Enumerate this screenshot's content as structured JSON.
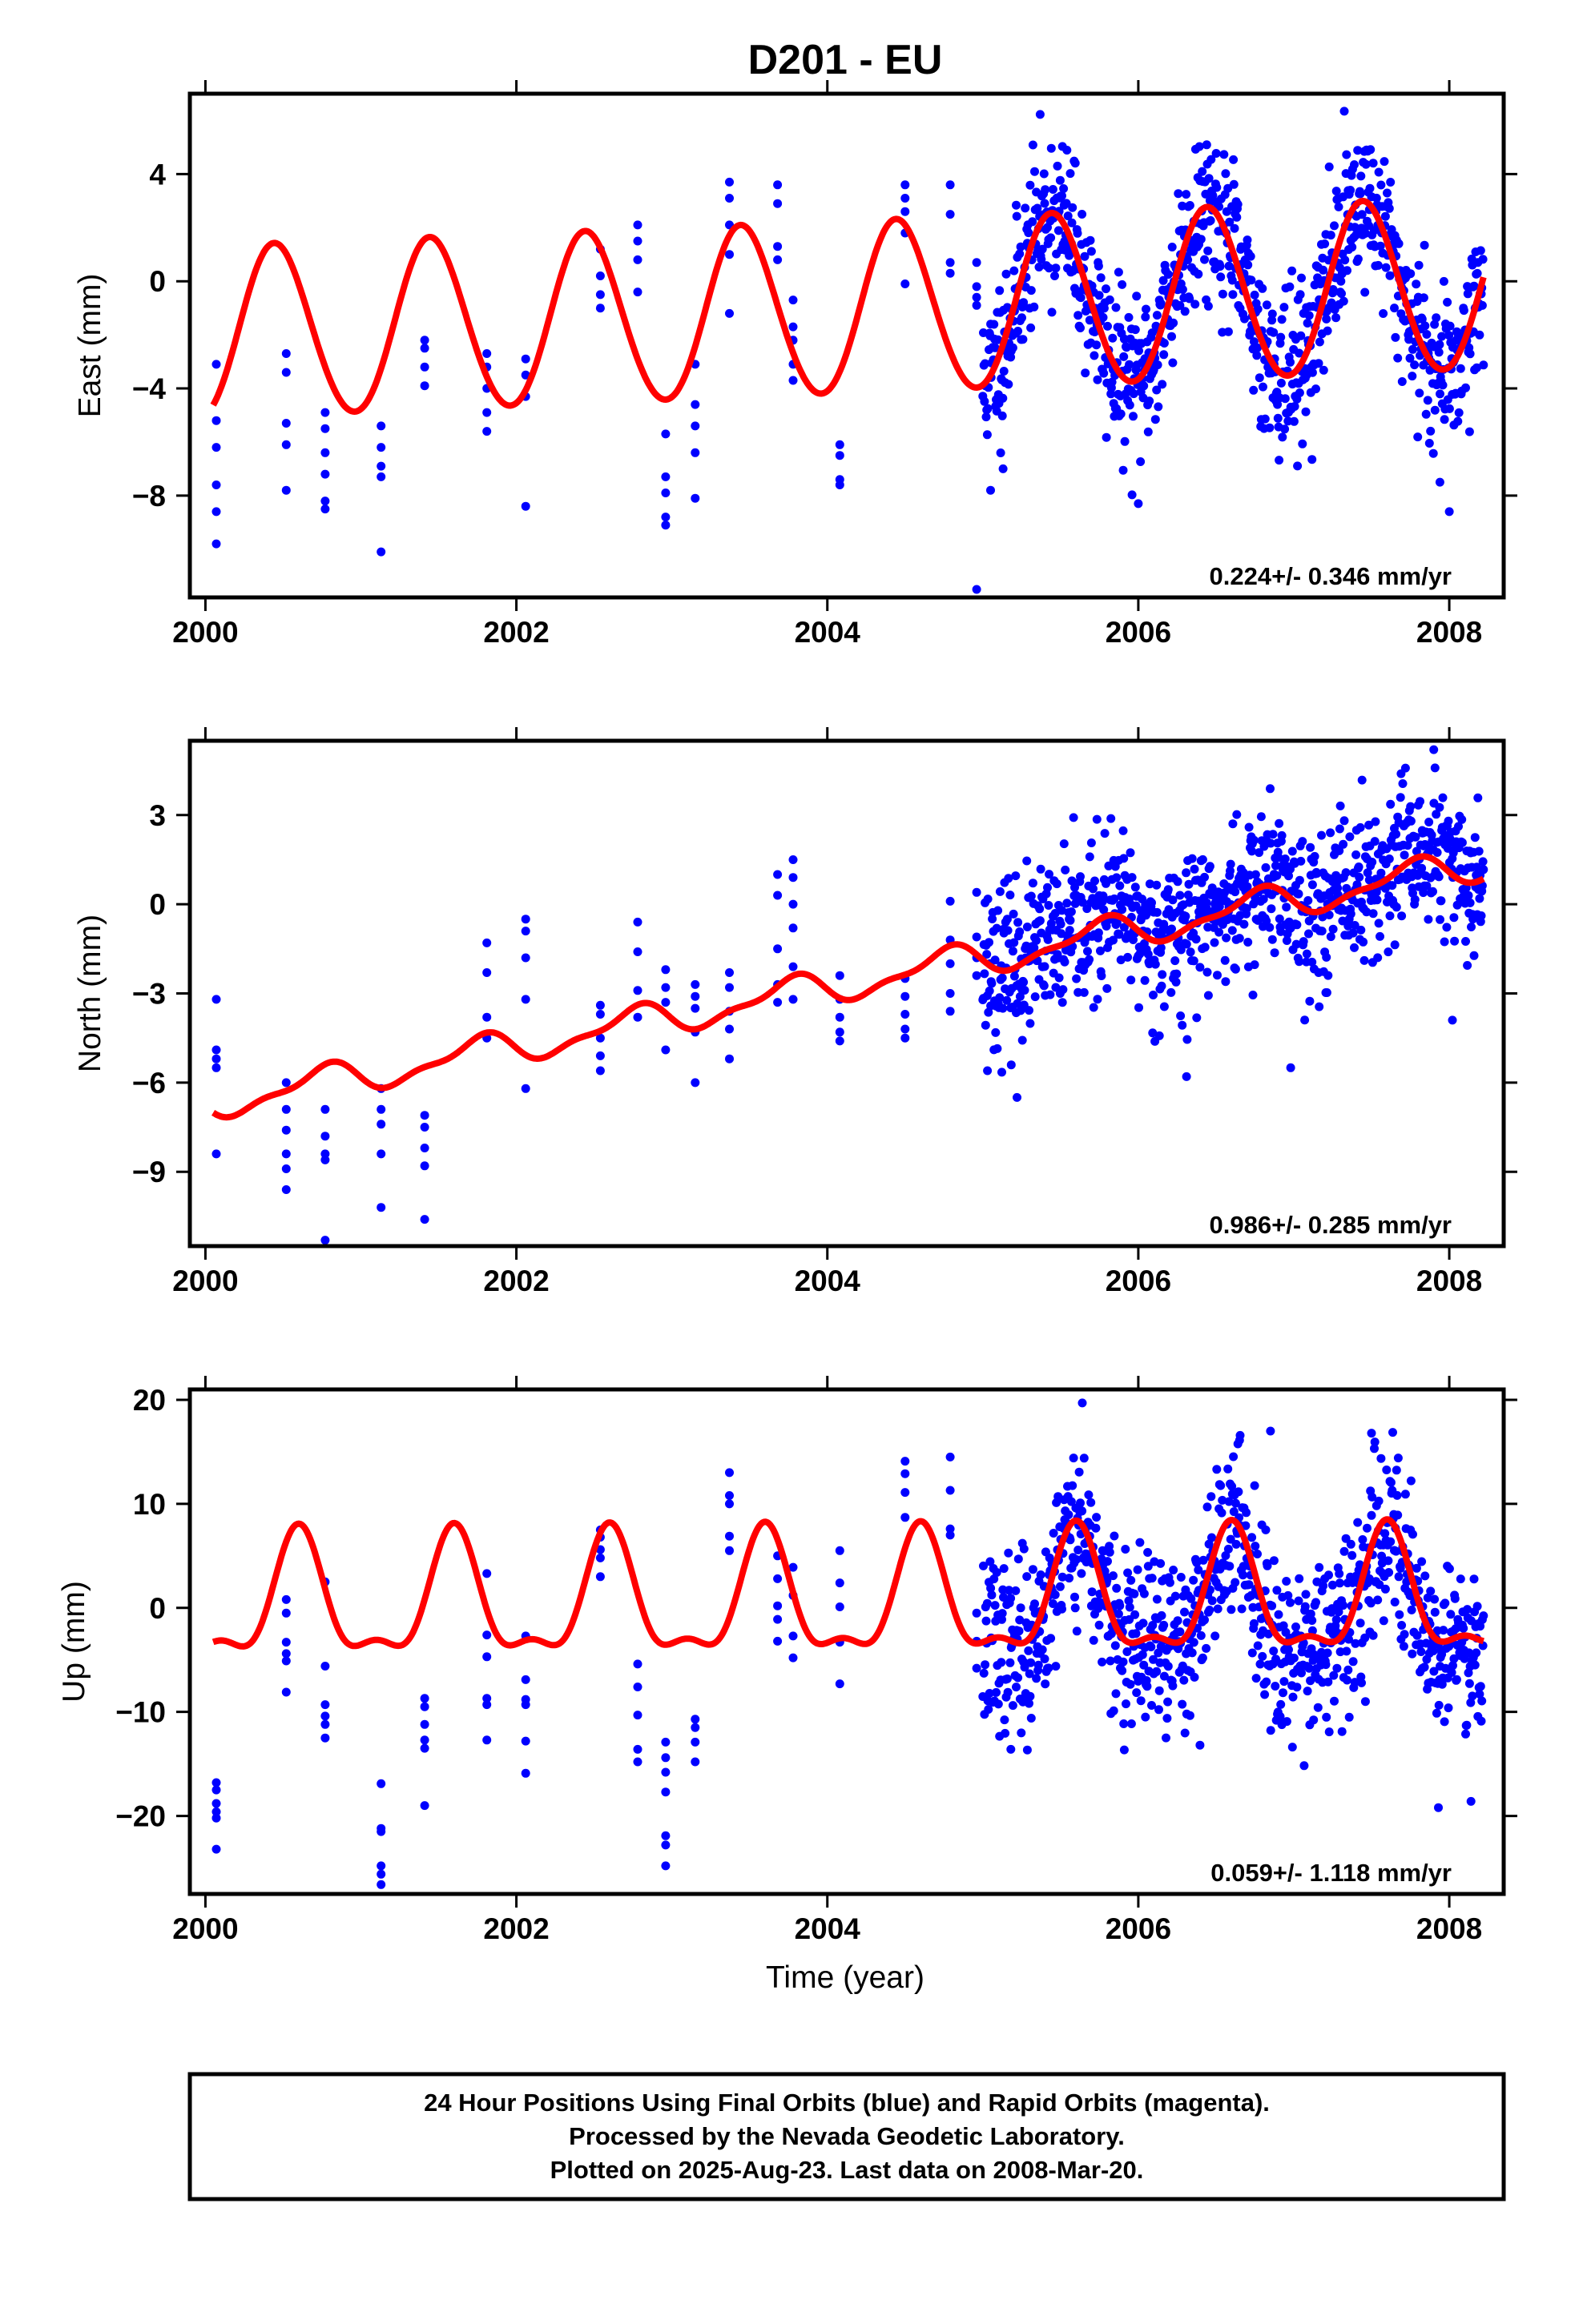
{
  "title": "D201 - EU",
  "xlabel": "Time (year)",
  "footer": {
    "lines": [
      "24 Hour Positions Using Final Orbits (blue) and Rapid Orbits (magenta).",
      "Processed by the Nevada Geodetic Laboratory.",
      "Plotted on 2025-Aug-23. Last data on 2008-Mar-20."
    ]
  },
  "colors": {
    "points": "#0000ff",
    "model": "#ff0000",
    "frame": "#000000"
  },
  "chart_data": [
    {
      "type": "scatter",
      "component": "east",
      "ylabel": "East (mm)",
      "rate_text": "0.224+/- 0.346 mm/yr",
      "xlim": [
        1999.9,
        2008.35
      ],
      "ylim": [
        -11.8,
        7.0
      ],
      "xticks": [
        2000,
        2002,
        2004,
        2006,
        2008
      ],
      "xtick_labels": [
        "2000",
        "2002",
        "2004",
        "2006",
        "2008"
      ],
      "yticks": [
        -8,
        -4,
        0,
        4
      ],
      "ytick_labels": [
        "-8",
        "-4",
        "0",
        "4"
      ],
      "model": {
        "offset": -1.1,
        "rate": 0.224,
        "annual_amp": 3.2,
        "annual_peak": 0.45,
        "semi_amp": 0.15,
        "semi_peak": 0.4
      },
      "series": [
        {
          "name": "Final Orbits",
          "color": "#0000ff",
          "campaigns": [
            {
              "t": 2000.07,
              "values": [
                -3.1,
                -5.2,
                -6.2,
                -7.6,
                -8.6,
                -9.8
              ]
            },
            {
              "t": 2000.52,
              "values": [
                -2.7,
                -3.4,
                -5.3,
                -6.1,
                -7.8
              ]
            },
            {
              "t": 2000.77,
              "values": [
                -4.9,
                -5.5,
                -6.4,
                -7.2,
                -8.2,
                -8.5
              ]
            },
            {
              "t": 2001.13,
              "values": [
                -5.4,
                -6.2,
                -6.9,
                -7.3,
                -10.1
              ]
            },
            {
              "t": 2001.41,
              "values": [
                -2.2,
                -2.5,
                -3.2,
                -3.9
              ]
            },
            {
              "t": 2001.81,
              "values": [
                -2.7,
                -3.2,
                -4.0,
                -4.9,
                -5.6
              ]
            },
            {
              "t": 2002.06,
              "values": [
                -2.9,
                -3.5,
                -4.3,
                -8.4
              ]
            },
            {
              "t": 2002.54,
              "values": [
                0.2,
                1.2,
                -0.5,
                -1.0
              ]
            },
            {
              "t": 2002.78,
              "values": [
                1.5,
                2.1,
                0.8,
                -0.4
              ]
            },
            {
              "t": 2002.96,
              "values": [
                -5.7,
                -7.3,
                -7.9,
                -8.8,
                -9.1
              ]
            },
            {
              "t": 2003.15,
              "values": [
                -3.1,
                -4.6,
                -5.4,
                -6.4,
                -8.1
              ]
            },
            {
              "t": 2003.37,
              "values": [
                3.7,
                3.1,
                2.1,
                1.0,
                -1.2
              ]
            },
            {
              "t": 2003.68,
              "values": [
                3.6,
                2.9,
                1.3,
                0.8
              ]
            },
            {
              "t": 2003.78,
              "values": [
                -0.7,
                -1.7,
                -2.2,
                -3.1,
                -3.7
              ]
            },
            {
              "t": 2004.08,
              "values": [
                -6.1,
                -6.5,
                -7.4,
                -7.6
              ]
            },
            {
              "t": 2004.5,
              "values": [
                3.6,
                3.1,
                2.6,
                1.8,
                -0.1
              ]
            },
            {
              "t": 2004.79,
              "values": [
                3.6,
                2.5,
                0.7,
                0.3
              ]
            },
            {
              "t": 2004.96,
              "values": [
                0.7,
                -0.2,
                -0.6,
                -0.9
              ]
            }
          ],
          "continuous": {
            "start": 2005.0,
            "end": 2008.22,
            "count": 900,
            "noise": 1.5,
            "bias": 0.0,
            "seed": 11,
            "outliers": [
              [
                2004.96,
                -11.5
              ],
              [
                2005.05,
                -7.8
              ],
              [
                2005.13,
                -7.0
              ],
              [
                2006.0,
                -8.3
              ],
              [
                2007.94,
                -7.5
              ],
              [
                2008.0,
                -8.6
              ]
            ]
          }
        }
      ]
    },
    {
      "type": "scatter",
      "component": "north",
      "ylabel": "North (mm)",
      "rate_text": "0.986+/- 0.285 mm/yr",
      "xlim": [
        1999.9,
        2008.35
      ],
      "ylim": [
        -11.5,
        5.5
      ],
      "xticks": [
        2000,
        2002,
        2004,
        2006,
        2008
      ],
      "xtick_labels": [
        "2000",
        "2002",
        "2004",
        "2006",
        "2008"
      ],
      "yticks": [
        -9,
        -6,
        -3,
        0,
        3
      ],
      "ytick_labels": [
        "-9",
        "-6",
        "-3",
        "0",
        "3"
      ],
      "model": {
        "offset": -2.8,
        "rate": 0.986,
        "annual_amp": 0.5,
        "annual_peak": 0.75,
        "semi_amp": 0.2,
        "semi_peak": 0.35
      },
      "series": [
        {
          "name": "Final Orbits",
          "color": "#0000ff",
          "campaigns": [
            {
              "t": 2000.07,
              "values": [
                -3.2,
                -4.9,
                -5.2,
                -5.5,
                -8.4
              ]
            },
            {
              "t": 2000.52,
              "values": [
                -6.0,
                -6.9,
                -7.6,
                -8.4,
                -8.9,
                -9.6
              ]
            },
            {
              "t": 2000.77,
              "values": [
                -6.9,
                -7.8,
                -8.6,
                -8.4,
                -11.3
              ]
            },
            {
              "t": 2001.13,
              "values": [
                -6.2,
                -6.9,
                -7.4,
                -8.4,
                -10.2
              ]
            },
            {
              "t": 2001.41,
              "values": [
                -7.1,
                -7.5,
                -8.2,
                -8.8,
                -10.6
              ]
            },
            {
              "t": 2001.81,
              "values": [
                -1.3,
                -2.3,
                -3.8,
                -4.5
              ]
            },
            {
              "t": 2002.06,
              "values": [
                -0.5,
                -0.9,
                -1.8,
                -3.2,
                -6.2
              ]
            },
            {
              "t": 2002.54,
              "values": [
                -3.4,
                -3.7,
                -4.5,
                -5.1,
                -5.6
              ]
            },
            {
              "t": 2002.78,
              "values": [
                -0.6,
                -1.6,
                -2.9,
                -3.8
              ]
            },
            {
              "t": 2002.96,
              "values": [
                -2.2,
                -2.8,
                -3.3,
                -4.9
              ]
            },
            {
              "t": 2003.15,
              "values": [
                -2.7,
                -3.1,
                -3.5,
                -4.3,
                -6.0
              ]
            },
            {
              "t": 2003.37,
              "values": [
                -2.3,
                -2.8,
                -3.6,
                -4.2,
                -5.2
              ]
            },
            {
              "t": 2003.68,
              "values": [
                1.0,
                0.3,
                -1.5,
                -2.7,
                -3.3
              ]
            },
            {
              "t": 2003.78,
              "values": [
                1.5,
                0.9,
                0.0,
                -0.8,
                -2.1,
                -3.2
              ]
            },
            {
              "t": 2004.08,
              "values": [
                -2.4,
                -3.2,
                -3.8,
                -4.3,
                -4.6
              ]
            },
            {
              "t": 2004.5,
              "values": [
                -2.5,
                -3.1,
                -3.7,
                -4.2,
                -4.5
              ]
            },
            {
              "t": 2004.79,
              "values": [
                0.1,
                -1.2,
                -2.0,
                -3.0,
                -3.6
              ]
            },
            {
              "t": 2004.96,
              "values": [
                0.4,
                -1.1,
                -1.8,
                -2.4
              ]
            }
          ],
          "continuous": {
            "start": 2005.0,
            "end": 2008.22,
            "count": 900,
            "noise": 1.3,
            "bias": 0.1,
            "seed": 23,
            "outliers": [
              [
                2005.03,
                -5.6
              ],
              [
                2005.22,
                -6.5
              ],
              [
                2006.31,
                -5.8
              ],
              [
                2006.98,
                -5.5
              ],
              [
                2007.9,
                5.2
              ],
              [
                2008.02,
                -3.9
              ]
            ]
          }
        }
      ]
    },
    {
      "type": "scatter",
      "component": "up",
      "ylabel": "Up (mm)",
      "rate_text": "0.059+/- 1.118 mm/yr",
      "xlim": [
        1999.9,
        2008.35
      ],
      "ylim": [
        -27.5,
        21.0
      ],
      "xticks": [
        2000,
        2002,
        2004,
        2006,
        2008
      ],
      "xtick_labels": [
        "2000",
        "2002",
        "2004",
        "2006",
        "2008"
      ],
      "yticks": [
        -20,
        -10,
        0,
        10,
        20
      ],
      "ytick_labels": [
        "-20",
        "-10",
        "0",
        "10",
        "20"
      ],
      "model": {
        "offset": 0.5,
        "rate": 0.059,
        "annual_amp": 5.6,
        "annual_peak": 0.6,
        "semi_amp": 2.2,
        "semi_peak": 0.1
      },
      "series": [
        {
          "name": "Final Orbits",
          "color": "#0000ff",
          "campaigns": [
            {
              "t": 2000.07,
              "values": [
                -16.8,
                -17.5,
                -18.8,
                -19.6,
                -20.2,
                -23.2
              ]
            },
            {
              "t": 2000.52,
              "values": [
                0.8,
                -0.5,
                -3.3,
                -4.4,
                -5.1,
                -8.1
              ]
            },
            {
              "t": 2000.77,
              "values": [
                2.5,
                -5.6,
                -9.3,
                -10.4,
                -11.2,
                -12.5
              ]
            },
            {
              "t": 2001.13,
              "values": [
                -16.9,
                -21.2,
                -21.5,
                -24.8,
                -25.6,
                -26.6
              ]
            },
            {
              "t": 2001.41,
              "values": [
                -8.7,
                -9.5,
                -11.2,
                -12.7,
                -13.5,
                -19.0
              ]
            },
            {
              "t": 2001.81,
              "values": [
                3.3,
                -2.6,
                -4.7,
                -8.7,
                -9.3,
                -12.7
              ]
            },
            {
              "t": 2002.06,
              "values": [
                -2.7,
                -6.9,
                -8.8,
                -9.3,
                -12.8,
                -15.9
              ]
            },
            {
              "t": 2002.54,
              "values": [
                7.5,
                6.8,
                5.6,
                4.8,
                3.0
              ]
            },
            {
              "t": 2002.78,
              "values": [
                -5.4,
                -7.6,
                -10.3,
                -13.6,
                -14.8
              ]
            },
            {
              "t": 2002.96,
              "values": [
                -12.9,
                -14.4,
                -15.8,
                -17.7,
                -21.9,
                -22.8,
                -24.8
              ]
            },
            {
              "t": 2003.15,
              "values": [
                -10.7,
                -11.5,
                -12.9,
                -14.8
              ]
            },
            {
              "t": 2003.37,
              "values": [
                13.0,
                10.8,
                10.0,
                6.9,
                5.5
              ]
            },
            {
              "t": 2003.68,
              "values": [
                5.0,
                2.8,
                0.2,
                -1.1,
                -3.2
              ]
            },
            {
              "t": 2003.78,
              "values": [
                3.9,
                1.2,
                -2.7,
                -4.8
              ]
            },
            {
              "t": 2004.08,
              "values": [
                5.5,
                2.4,
                0.1,
                -3.3,
                -7.3
              ]
            },
            {
              "t": 2004.5,
              "values": [
                14.1,
                12.9,
                11.1,
                8.7
              ]
            },
            {
              "t": 2004.79,
              "values": [
                14.5,
                11.3,
                7.6,
                7.0
              ]
            },
            {
              "t": 2004.96,
              "values": [
                -0.5,
                -3.2,
                -5.8
              ]
            }
          ],
          "continuous": {
            "start": 2005.0,
            "end": 2008.22,
            "count": 900,
            "noise": 4.2,
            "bias": -0.6,
            "seed": 37,
            "outliers": [
              [
                2005.64,
                19.7
              ],
              [
                2005.18,
                -13.6
              ],
              [
                2006.85,
                17.0
              ],
              [
                2007.5,
                16.8
              ],
              [
                2007.93,
                -19.2
              ],
              [
                2008.14,
                -18.6
              ]
            ]
          }
        }
      ]
    }
  ]
}
